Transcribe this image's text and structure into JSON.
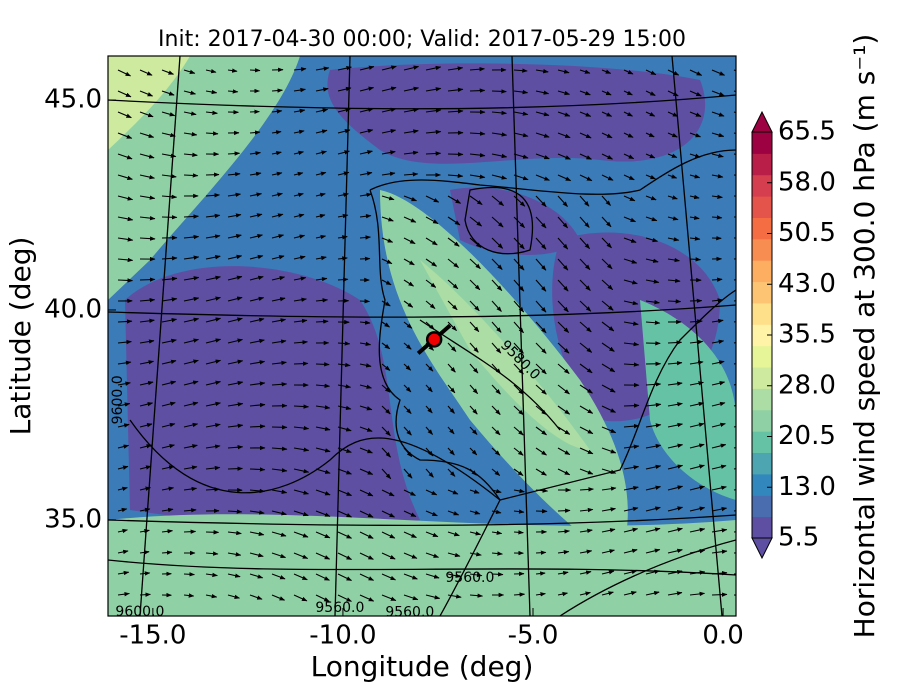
{
  "chart_data": {
    "type": "contour",
    "title": "Init: 2017-04-30 00:00; Valid: 2017-05-29 15:00",
    "xlabel": "Longitude (deg)",
    "ylabel": "Latitude (deg)",
    "xlim": [
      -16.18,
      0.34
    ],
    "ylim": [
      32.71,
      46.05
    ],
    "xticks": [
      {
        "value": -15,
        "label": "-15.0"
      },
      {
        "value": -10,
        "label": "-10.0"
      },
      {
        "value": -5,
        "label": "-5.0"
      },
      {
        "value": 0,
        "label": "0.0"
      }
    ],
    "yticks": [
      {
        "value": 35,
        "label": "35.0"
      },
      {
        "value": 40,
        "label": "40.0"
      },
      {
        "value": 45,
        "label": "45.0"
      }
    ],
    "colorbar": {
      "label": "Horizontal wind speed at 300.0 hPa (m s⁻¹)",
      "lim": [
        5.5,
        65.5
      ],
      "ticks": [
        5.5,
        {
          "value": 13,
          "label": "13.0"
        },
        20.5,
        {
          "value": 28,
          "label": "28.0"
        },
        35.5,
        {
          "value": 43,
          "label": "43.0"
        },
        50.5,
        {
          "value": 58,
          "label": "58.0"
        },
        65.5
      ],
      "colors": [
        "#5e4fa2",
        "#4a6db0",
        "#3288bd",
        "#4ca5b1",
        "#66c2a5",
        "#8fd1a5",
        "#abdda4",
        "#cdea9e",
        "#e6f598",
        "#fff3a8",
        "#fee08b",
        "#fdc474",
        "#fdae61",
        "#f88d52",
        "#f46d43",
        "#e4544a",
        "#d53e4f",
        "#b81e48",
        "#9e0142"
      ]
    },
    "marker": [
      -7.6,
      39.3
    ],
    "annotations": [
      {
        "text": "9560.0",
        "x": -6.66,
        "y": 33.62
      },
      {
        "text": "9560.0",
        "x": -10.08,
        "y": 32.9
      },
      {
        "text": "9560.0",
        "x": -8.24,
        "y": 32.79
      },
      {
        "text": "9600.0",
        "x": -15.34,
        "y": 32.81
      },
      {
        "text": "9580.0",
        "x": -5.34,
        "y": 38.8
      },
      {
        "text": "9600.0",
        "x": -15.92,
        "y": 37.86
      }
    ]
  }
}
